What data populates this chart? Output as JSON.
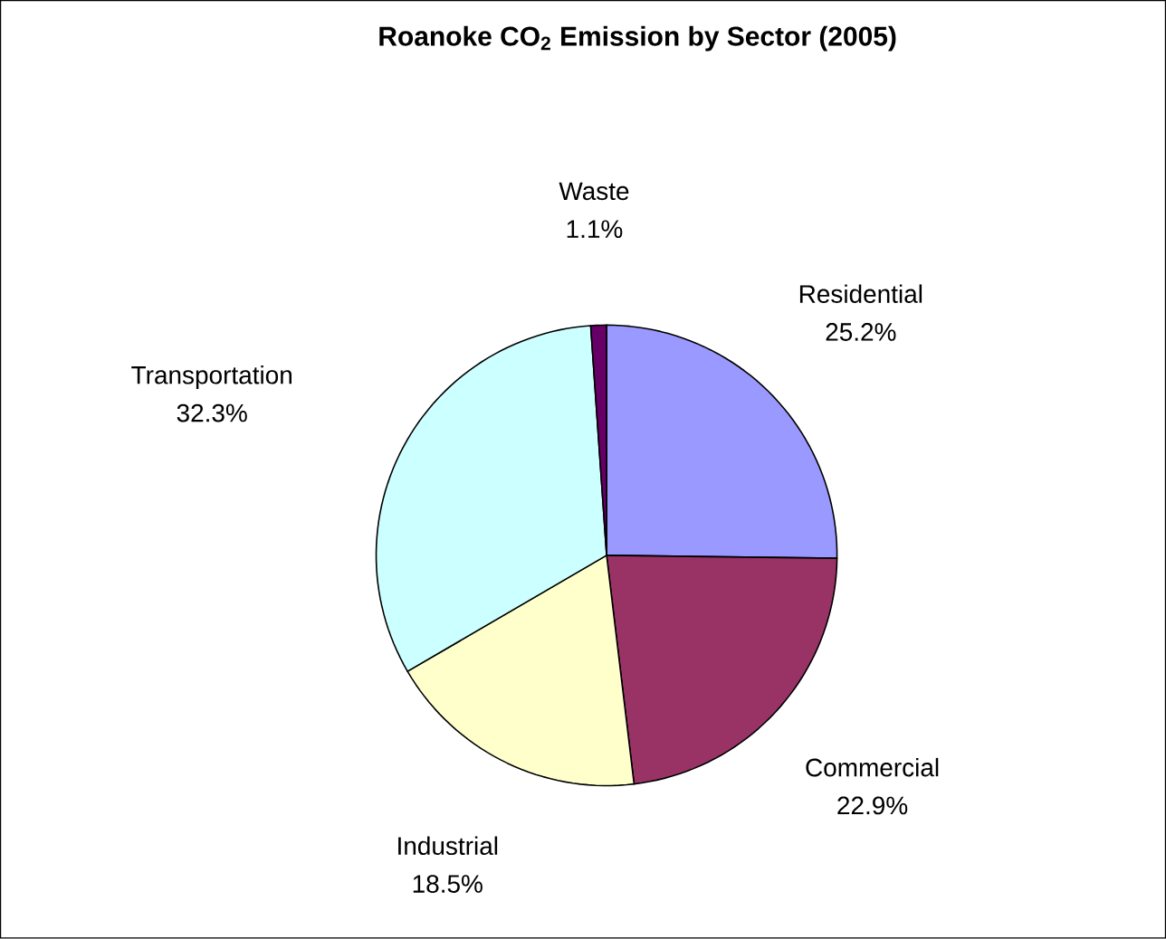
{
  "chart_data": {
    "type": "pie",
    "title": "Roanoke CO$_{2}$ Emission by Sector (2005)",
    "categories": [
      "Residential",
      "Commercial",
      "Industrial",
      "Transportation",
      "Waste"
    ],
    "values": [
      25.2,
      22.9,
      18.5,
      32.3,
      1.1
    ],
    "value_labels": [
      "25.2%",
      "22.9%",
      "18.5%",
      "32.3%",
      "1.1%"
    ],
    "colors": [
      "#9999ff",
      "#993366",
      "#ffffcc",
      "#ccffff",
      "#660066"
    ]
  }
}
